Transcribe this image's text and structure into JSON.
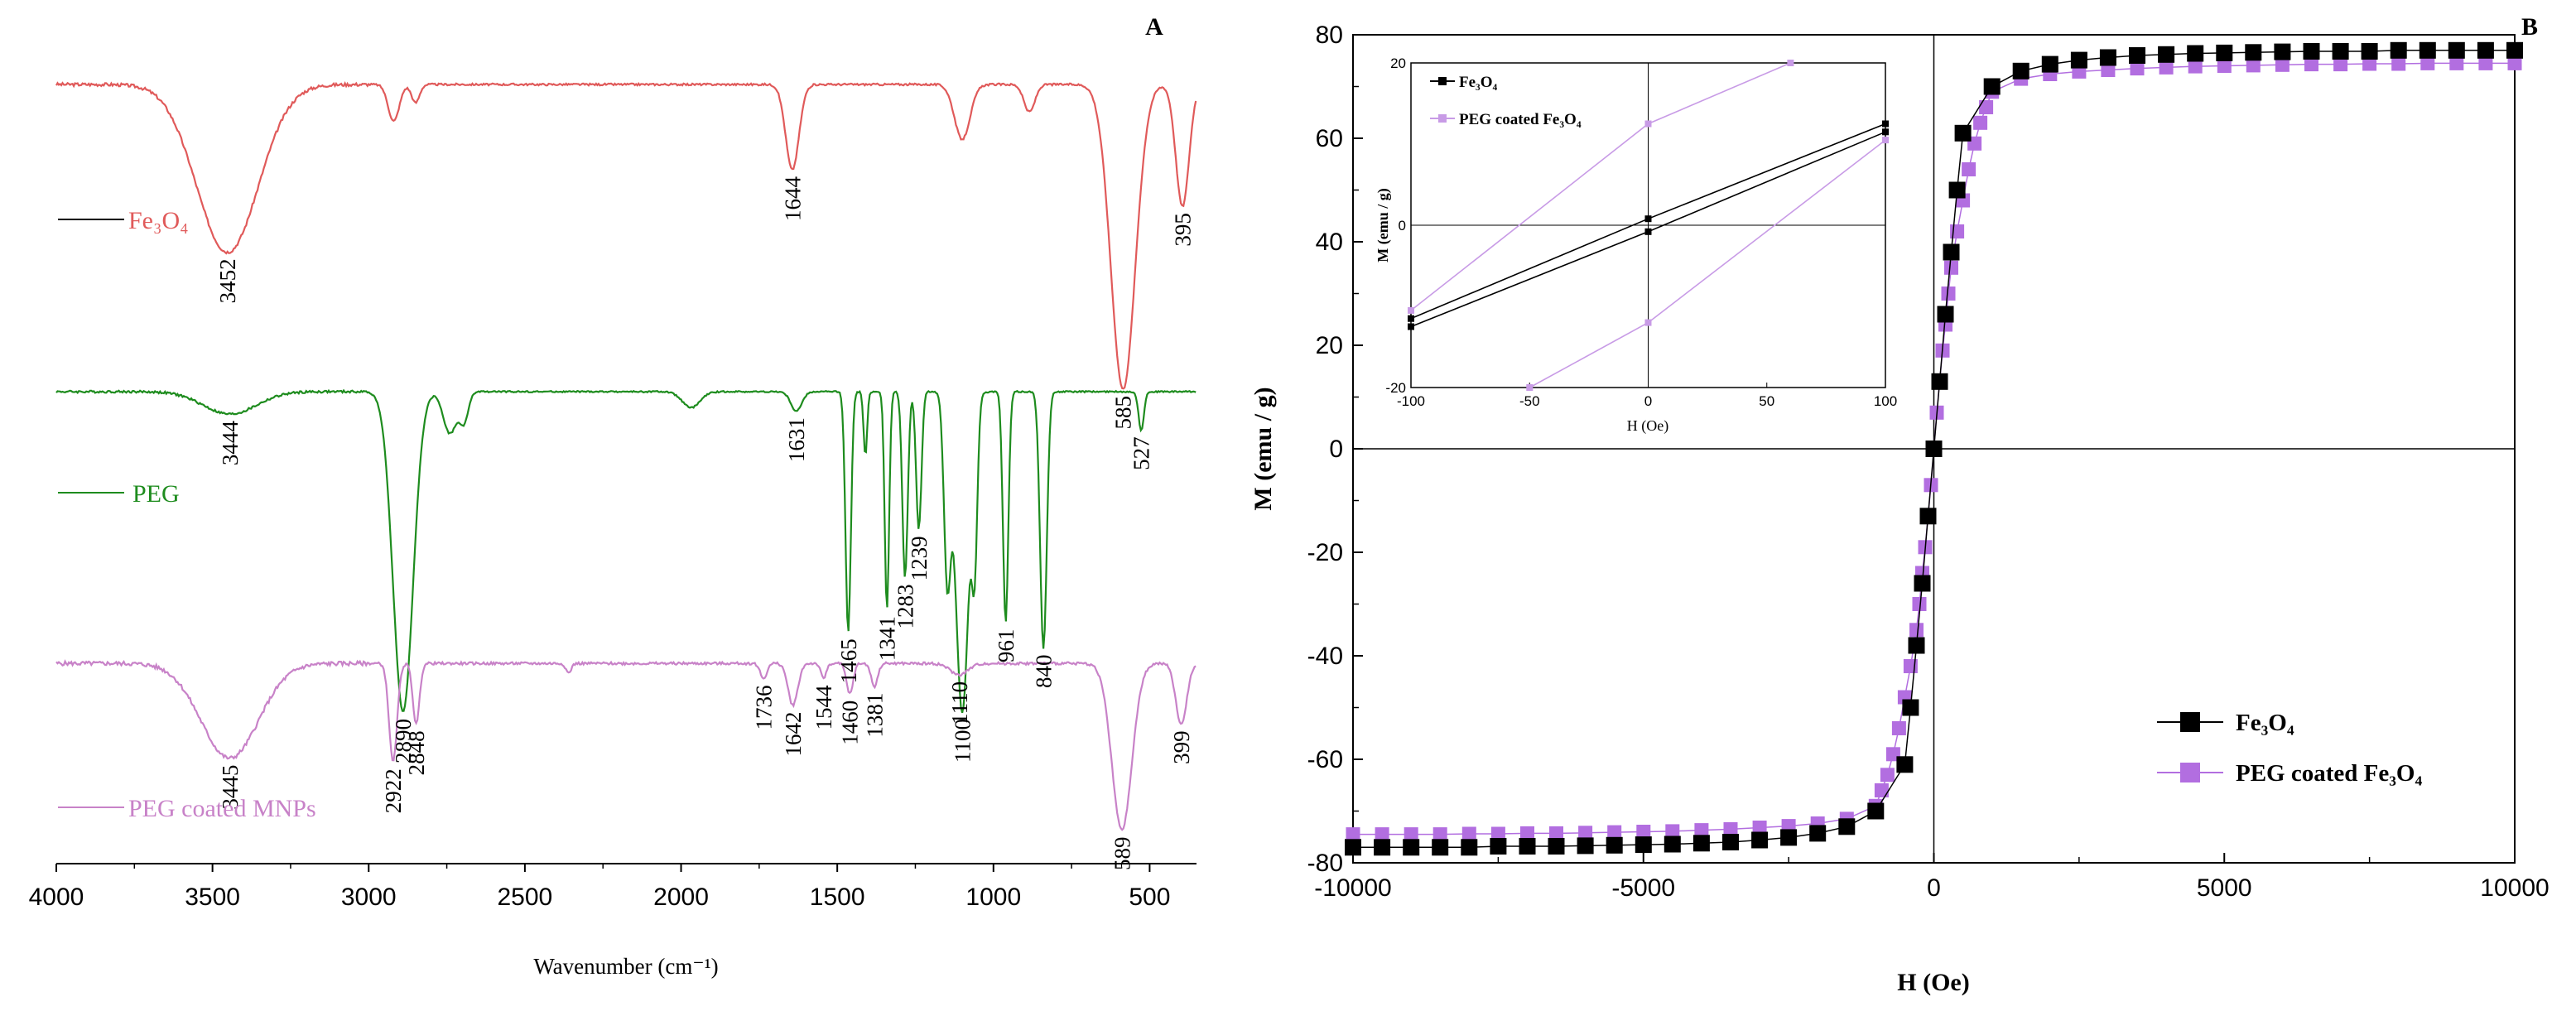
{
  "chart_data": [
    {
      "id": "ftir",
      "panel_label": "A",
      "type": "line",
      "title": "",
      "xlabel": "Wavenumber (cm⁻¹)",
      "ylabel": "",
      "xlim": [
        4000,
        350
      ],
      "x_ticks": [
        4000,
        3500,
        3000,
        2500,
        2000,
        1500,
        1000,
        500
      ],
      "grid": false,
      "series": [
        {
          "key": "fe3o4",
          "name": "Fe₃O₄",
          "color": "#e05a5a",
          "baseline": 0.92,
          "noise": 0.006,
          "dips": [
            {
              "x": 3452,
              "depth": 0.55,
              "w": 140
            },
            {
              "x": 2920,
              "depth": 0.12,
              "w": 25
            },
            {
              "x": 2850,
              "depth": 0.06,
              "w": 18
            },
            {
              "x": 1644,
              "depth": 0.28,
              "w": 30
            },
            {
              "x": 1100,
              "depth": 0.18,
              "w": 35
            },
            {
              "x": 885,
              "depth": 0.09,
              "w": 25
            },
            {
              "x": 585,
              "depth": 1.0,
              "w": 55
            },
            {
              "x": 395,
              "depth": 0.4,
              "w": 30
            }
          ],
          "peak_labels": [
            "3452",
            "1644",
            "585",
            "395"
          ]
        },
        {
          "key": "peg",
          "name": "PEG",
          "color": "#1e8c1e",
          "baseline": 0.9,
          "noise": 0.004,
          "dips": [
            {
              "x": 3444,
              "depth": 0.07,
              "w": 120
            },
            {
              "x": 2890,
              "depth": 1.0,
              "w": 45
            },
            {
              "x": 2740,
              "depth": 0.13,
              "w": 30
            },
            {
              "x": 2695,
              "depth": 0.09,
              "w": 20
            },
            {
              "x": 1968,
              "depth": 0.05,
              "w": 40
            },
            {
              "x": 1631,
              "depth": 0.06,
              "w": 25
            },
            {
              "x": 1465,
              "depth": 0.75,
              "w": 12
            },
            {
              "x": 1410,
              "depth": 0.2,
              "w": 8
            },
            {
              "x": 1341,
              "depth": 0.68,
              "w": 10
            },
            {
              "x": 1283,
              "depth": 0.58,
              "w": 12
            },
            {
              "x": 1239,
              "depth": 0.43,
              "w": 12
            },
            {
              "x": 1148,
              "depth": 0.55,
              "w": 15
            },
            {
              "x": 1100,
              "depth": 1.0,
              "w": 30
            },
            {
              "x": 1060,
              "depth": 0.45,
              "w": 12
            },
            {
              "x": 961,
              "depth": 0.72,
              "w": 12
            },
            {
              "x": 840,
              "depth": 0.8,
              "w": 15
            },
            {
              "x": 527,
              "depth": 0.12,
              "w": 12
            }
          ],
          "peak_labels": [
            "3444",
            "2890",
            "1631",
            "1465",
            "1341",
            "1283",
            "1239",
            "1100",
            "961",
            "840",
            "527"
          ]
        },
        {
          "key": "peg_mnp",
          "name": "PEG coated MNPs",
          "color": "#c882c8",
          "baseline": 0.88,
          "noise": 0.012,
          "dips": [
            {
              "x": 3445,
              "depth": 0.5,
              "w": 130
            },
            {
              "x": 2922,
              "depth": 0.52,
              "w": 18
            },
            {
              "x": 2848,
              "depth": 0.32,
              "w": 15
            },
            {
              "x": 2360,
              "depth": 0.05,
              "w": 12
            },
            {
              "x": 1736,
              "depth": 0.08,
              "w": 15
            },
            {
              "x": 1642,
              "depth": 0.22,
              "w": 22
            },
            {
              "x": 1544,
              "depth": 0.08,
              "w": 12
            },
            {
              "x": 1460,
              "depth": 0.16,
              "w": 15
            },
            {
              "x": 1381,
              "depth": 0.12,
              "w": 15
            },
            {
              "x": 1110,
              "depth": 0.06,
              "w": 40
            },
            {
              "x": 589,
              "depth": 0.88,
              "w": 45
            },
            {
              "x": 399,
              "depth": 0.32,
              "w": 25
            }
          ],
          "peak_labels": [
            "3445",
            "2922",
            "2848",
            "1736",
            "1642",
            "1544",
            "1460",
            "1381",
            "1110",
            "589",
            "399"
          ]
        }
      ]
    },
    {
      "id": "vsm",
      "panel_label": "B",
      "type": "scatter",
      "title": "",
      "xlabel": "H (Oe)",
      "ylabel": "M (emu / g)",
      "xlim": [
        -10000,
        10000
      ],
      "ylim": [
        -80,
        80
      ],
      "x_ticks": [
        -10000,
        -5000,
        0,
        5000,
        10000
      ],
      "y_ticks": [
        -80,
        -60,
        -40,
        -20,
        0,
        20,
        40,
        60,
        80
      ],
      "grid": false,
      "legend_position": "bottom-right",
      "series": [
        {
          "key": "fe3o4",
          "name": "Fe₃O₄",
          "color": "#000000",
          "marker": "square",
          "x": [
            -10000,
            -9500,
            -9000,
            -8500,
            -8000,
            -7500,
            -7000,
            -6500,
            -6000,
            -5500,
            -5000,
            -4500,
            -4000,
            -3500,
            -3000,
            -2500,
            -2000,
            -1500,
            -1000,
            -500,
            -400,
            -300,
            -200,
            -100,
            0,
            100,
            200,
            300,
            400,
            500,
            1000,
            1500,
            2000,
            2500,
            3000,
            3500,
            4000,
            4500,
            5000,
            5500,
            6000,
            6500,
            7000,
            7500,
            8000,
            8500,
            9000,
            9500,
            10000
          ],
          "y": [
            -77,
            -77,
            -77,
            -77,
            -77,
            -76.8,
            -76.8,
            -76.8,
            -76.7,
            -76.6,
            -76.5,
            -76.4,
            -76.2,
            -76,
            -75.6,
            -75.1,
            -74.3,
            -73,
            -70,
            -61,
            -50,
            -38,
            -26,
            -13,
            0,
            13,
            26,
            38,
            50,
            61,
            70,
            73,
            74.3,
            75.1,
            75.6,
            76,
            76.2,
            76.4,
            76.5,
            76.6,
            76.7,
            76.8,
            76.8,
            76.8,
            77,
            77,
            77,
            77,
            77
          ]
        },
        {
          "key": "peg_fe3o4",
          "name": "PEG coated Fe₃O₄",
          "color": "#b26ee0",
          "marker": "square",
          "x": [
            -10000,
            -9500,
            -9000,
            -8500,
            -8000,
            -7500,
            -7000,
            -6500,
            -6000,
            -5500,
            -5000,
            -4500,
            -4000,
            -3500,
            -3000,
            -2500,
            -2000,
            -1500,
            -1000,
            -900,
            -800,
            -700,
            -600,
            -500,
            -400,
            -300,
            -250,
            -200,
            -150,
            -100,
            -50,
            0,
            50,
            100,
            150,
            200,
            250,
            300,
            400,
            500,
            600,
            700,
            800,
            900,
            1000,
            1500,
            2000,
            2500,
            3000,
            3500,
            4000,
            4500,
            5000,
            5500,
            6000,
            6500,
            7000,
            7500,
            8000,
            8500,
            9000,
            9500,
            10000
          ],
          "y": [
            -74.5,
            -74.5,
            -74.5,
            -74.5,
            -74.4,
            -74.4,
            -74.3,
            -74.3,
            -74.2,
            -74.1,
            -74,
            -73.9,
            -73.7,
            -73.5,
            -73.2,
            -72.9,
            -72.4,
            -71.5,
            -69,
            -66,
            -63,
            -59,
            -54,
            -48,
            -42,
            -35,
            -30,
            -24,
            -19,
            -13,
            -7,
            0,
            7,
            13,
            19,
            24,
            30,
            35,
            42,
            48,
            54,
            59,
            63,
            66,
            69,
            71.5,
            72.4,
            72.9,
            73.2,
            73.5,
            73.7,
            73.9,
            74,
            74.1,
            74.2,
            74.3,
            74.3,
            74.4,
            74.4,
            74.5,
            74.5,
            74.5,
            74.5
          ]
        }
      ],
      "inset": {
        "xlabel": "H (Oe)",
        "ylabel": "M (emu / g)",
        "xlim": [
          -100,
          100
        ],
        "ylim": [
          -20,
          20
        ],
        "x_ticks": [
          -100,
          -50,
          0,
          50,
          100
        ],
        "y_ticks": [
          -20,
          0,
          20
        ],
        "legend_position": "top-left",
        "series": [
          {
            "key": "fe3o4",
            "name": "Fe₃O₄",
            "color": "#000000",
            "upper": {
              "x": [
                -100,
                0,
                100
              ],
              "y": [
                -11.5,
                0.8,
                12.5
              ]
            },
            "lower": {
              "x": [
                -100,
                0,
                100
              ],
              "y": [
                -12.5,
                -0.8,
                11.5
              ]
            }
          },
          {
            "key": "peg_fe3o4",
            "name": "PEG coated Fe₃O₄",
            "color": "#c89be6",
            "upper": {
              "x": [
                -100,
                0,
                60
              ],
              "y": [
                -10.5,
                12.5,
                20
              ]
            },
            "lower": {
              "x": [
                -50,
                0,
                100
              ],
              "y": [
                -20,
                -12,
                10.5
              ]
            }
          }
        ]
      }
    }
  ]
}
